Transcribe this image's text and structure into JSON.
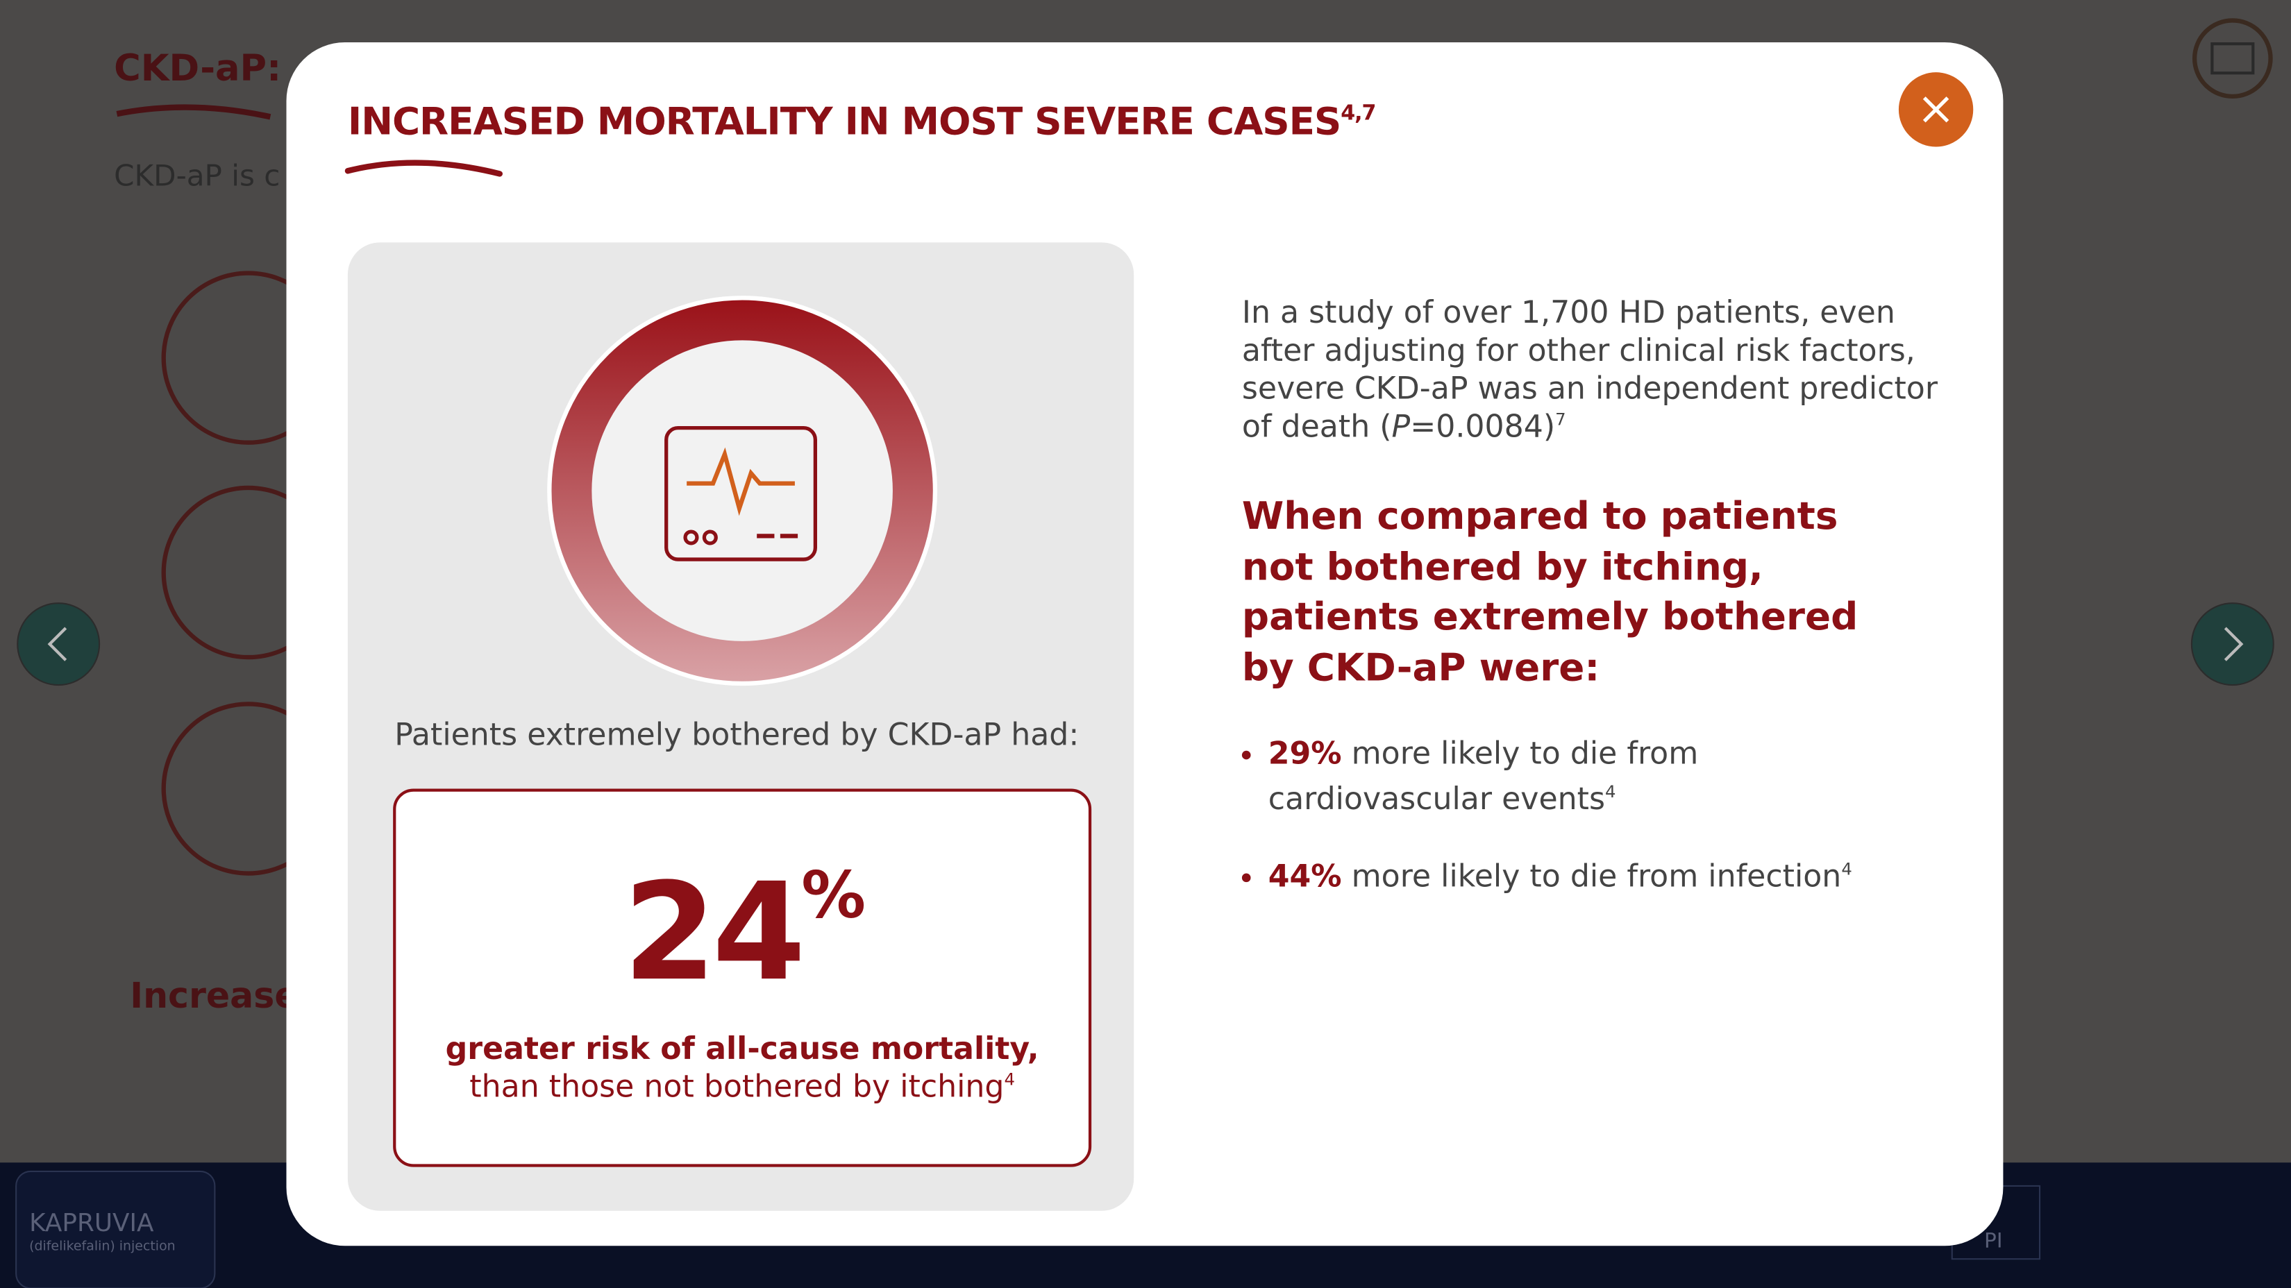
{
  "background": {
    "page_title": "CKD-aP:",
    "page_intro": "CKD-aP is c",
    "section_label": "Increased",
    "brand": "KAPRUVIA",
    "brand_sub": "(difelikefalin) injection",
    "pi": "PI"
  },
  "modal": {
    "title": "INCREASED MORTALITY IN MOST SEVERE CASES",
    "title_ref": "4,7",
    "left": {
      "caption": "Patients extremely bothered by CKD-aP had:",
      "stat": "24",
      "stat_unit": "%",
      "stat_bold": "greater risk of all-cause mortality,",
      "stat_rest": " than those not bothered by itching",
      "stat_ref": "4"
    },
    "right": {
      "para_start": "In a study of over 1,700 HD patients, even after adjusting for other clinical risk factors, severe CKD-aP was an independent predictor of death (",
      "para_italic": "P",
      "para_end": "=0.0084)",
      "para_ref": "7",
      "heading": "When compared to patients not bothered by itching, patients extremely bothered by CKD-aP were:",
      "bullets": [
        {
          "value": "29%",
          "text": " more likely to die from cardiovascular events",
          "ref": "4"
        },
        {
          "value": "44%",
          "text": " more likely to die from infection",
          "ref": "4"
        }
      ]
    }
  }
}
